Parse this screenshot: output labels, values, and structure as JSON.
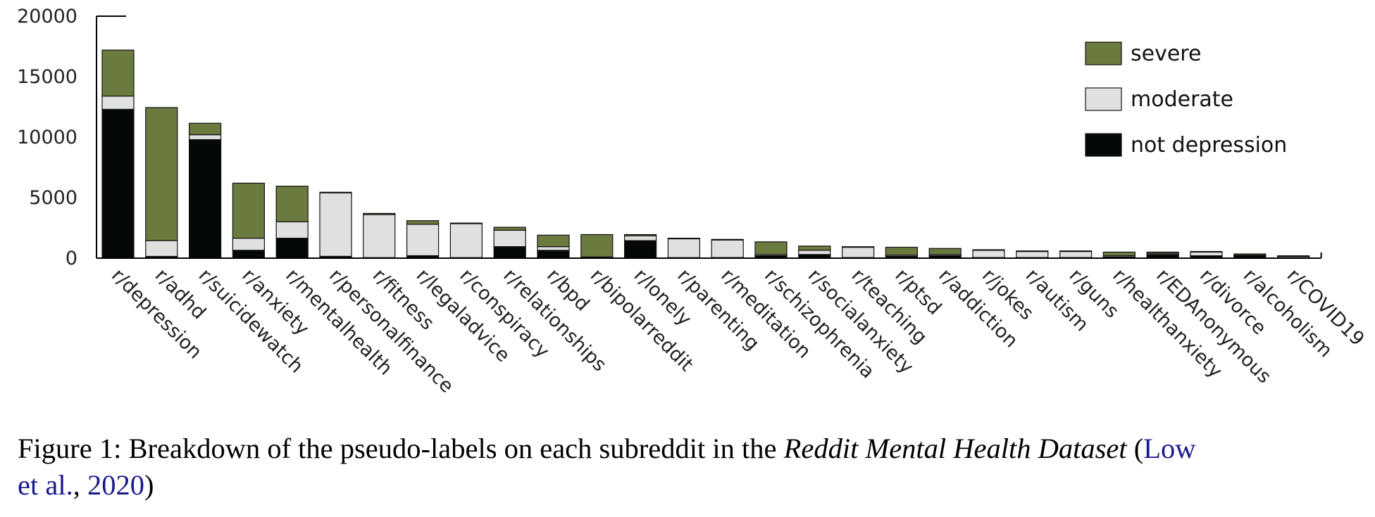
{
  "chart_data": {
    "type": "bar",
    "stacked": true,
    "categories": [
      "r/depression",
      "r/adhd",
      "r/suicidewatch",
      "r/anxiety",
      "r/mentalhealth",
      "r/personalfinance",
      "r/fitness",
      "r/legaladvice",
      "r/conspiracy",
      "r/relationships",
      "r/bpd",
      "r/bipolarreddit",
      "r/lonely",
      "r/parenting",
      "r/meditation",
      "r/schizophrenia",
      "r/socialanxiety",
      "r/teaching",
      "r/ptsd",
      "r/addiction",
      "r/jokes",
      "r/autism",
      "r/guns",
      "r/healthanxiety",
      "r/EDAnonymous",
      "r/divorce",
      "r/alcoholism",
      "r/COVID19"
    ],
    "series": [
      {
        "name": "not depression",
        "color": "#050808",
        "values": [
          12300,
          150,
          9800,
          650,
          1650,
          150,
          50,
          200,
          50,
          950,
          650,
          50,
          1450,
          50,
          50,
          200,
          300,
          50,
          150,
          200,
          50,
          50,
          50,
          100,
          300,
          200,
          200,
          50
        ]
      },
      {
        "name": "moderate",
        "color": "#e0e0e0",
        "values": [
          1100,
          1300,
          400,
          1000,
          1350,
          5250,
          3550,
          2600,
          2800,
          1350,
          300,
          50,
          400,
          1550,
          1450,
          100,
          350,
          850,
          100,
          100,
          600,
          500,
          500,
          100,
          100,
          300,
          50,
          100
        ]
      },
      {
        "name": "severe",
        "color": "#6b7a3e",
        "values": [
          3800,
          11000,
          950,
          4550,
          2950,
          50,
          100,
          300,
          50,
          250,
          950,
          1850,
          100,
          50,
          50,
          1050,
          350,
          50,
          650,
          500,
          50,
          50,
          50,
          300,
          100,
          50,
          100,
          50
        ]
      }
    ],
    "yticks": [
      "0",
      "5000",
      "10000",
      "15000",
      "20000"
    ],
    "ylim": [
      0,
      20000
    ],
    "grid": false,
    "legend_position": "top-right",
    "legend_order": [
      "severe",
      "moderate",
      "not depression"
    ]
  },
  "caption": {
    "prefix": "Figure 1:  Breakdown of the pseudo-labels on each subreddit in the ",
    "title_italic": "Reddit Mental Health Dataset",
    "open_paren": " (",
    "cite_part1": "Low",
    "cite_part2": "et al.",
    "comma": ", ",
    "cite_year": "2020",
    "close_paren": ")"
  }
}
